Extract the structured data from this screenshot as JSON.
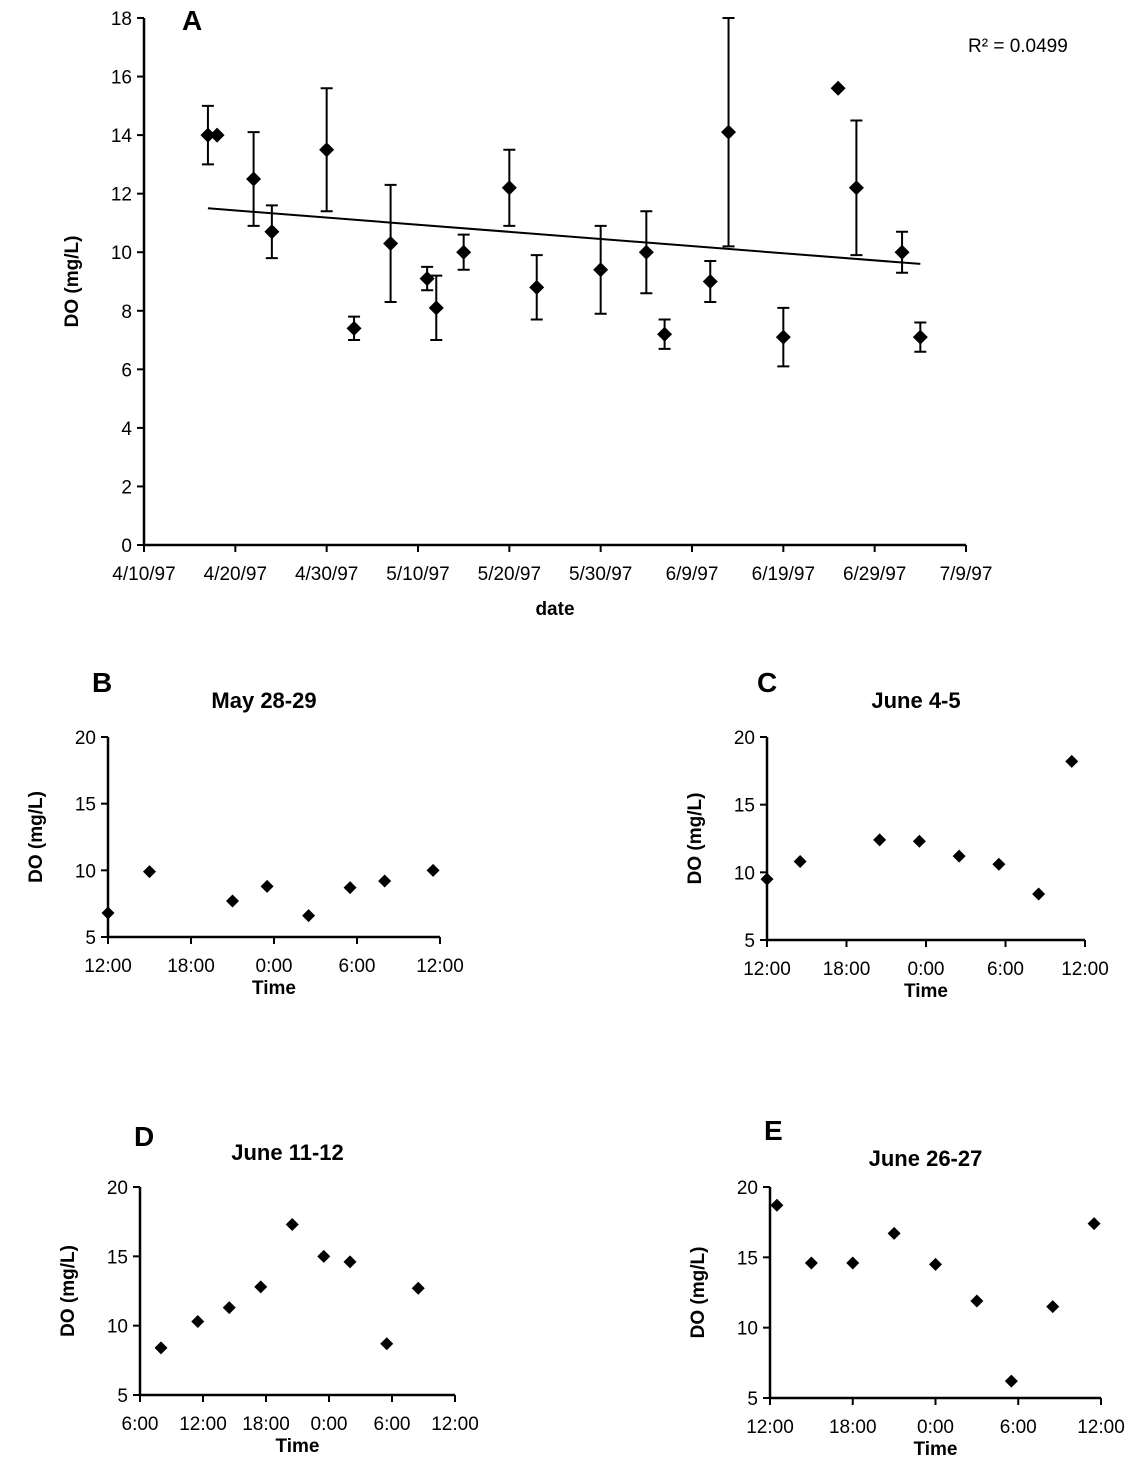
{
  "chart_data": [
    {
      "id": "A",
      "type": "scatter",
      "panel_label": "A",
      "title": "",
      "xlabel": "date",
      "ylabel": "DO (mg/L)",
      "ylim": [
        0,
        18
      ],
      "yticks": [
        "0",
        "2",
        "4",
        "6",
        "8",
        "10",
        "12",
        "14",
        "16",
        "18"
      ],
      "xlim": [
        "4/10/97",
        "7/9/97"
      ],
      "xticks": [
        "4/10/97",
        "4/20/97",
        "4/30/97",
        "5/10/97",
        "5/20/97",
        "5/30/97",
        "6/9/97",
        "6/19/97",
        "6/29/97",
        "7/9/97"
      ],
      "annotation": "R² = 0.0499",
      "trendline": {
        "x": [
          "4/17/97",
          "7/4/97"
        ],
        "y": [
          11.5,
          9.6
        ]
      },
      "points": [
        {
          "x": "4/17/97",
          "y": 14.0,
          "err": 1.0
        },
        {
          "x": "4/18/97",
          "y": 14.0,
          "err": 0.05
        },
        {
          "x": "4/22/97",
          "y": 12.5,
          "err": 1.6
        },
        {
          "x": "4/24/97",
          "y": 10.7,
          "err": 0.9
        },
        {
          "x": "4/30/97",
          "y": 13.5,
          "err": 2.1
        },
        {
          "x": "5/3/97",
          "y": 7.4,
          "err": 0.4
        },
        {
          "x": "5/7/97",
          "y": 10.3,
          "err": 2.0
        },
        {
          "x": "5/11/97",
          "y": 9.1,
          "err": 0.4
        },
        {
          "x": "5/12/97",
          "y": 8.1,
          "err": 1.1
        },
        {
          "x": "5/15/97",
          "y": 10.0,
          "err": 0.6
        },
        {
          "x": "5/20/97",
          "y": 12.2,
          "err": 1.3
        },
        {
          "x": "5/23/97",
          "y": 8.8,
          "err": 1.1
        },
        {
          "x": "5/30/97",
          "y": 9.4,
          "err": 1.5
        },
        {
          "x": "6/4/97",
          "y": 10.0,
          "err": 1.4
        },
        {
          "x": "6/6/97",
          "y": 7.2,
          "err": 0.5
        },
        {
          "x": "6/11/97",
          "y": 9.0,
          "err": 0.7
        },
        {
          "x": "6/13/97",
          "y": 14.1,
          "err": 3.9
        },
        {
          "x": "6/19/97",
          "y": 7.1,
          "err": 1.0
        },
        {
          "x": "6/25/97",
          "y": 15.6,
          "err": 0.0
        },
        {
          "x": "6/27/97",
          "y": 12.2,
          "err": 2.3
        },
        {
          "x": "7/2/97",
          "y": 10.0,
          "err": 0.7
        },
        {
          "x": "7/4/97",
          "y": 7.1,
          "err": 0.5
        }
      ]
    },
    {
      "id": "B",
      "type": "scatter",
      "panel_label": "B",
      "title": "May 28-29",
      "xlabel": "Time",
      "ylabel": "DO (mg/L)",
      "ylim": [
        5,
        20
      ],
      "yticks": [
        "5",
        "10",
        "15",
        "20"
      ],
      "xlim": [
        12,
        36
      ],
      "xticks": [
        "12:00",
        "18:00",
        "0:00",
        "6:00",
        "12:00"
      ],
      "points": [
        {
          "x": 12.0,
          "y": 6.8
        },
        {
          "x": 15.0,
          "y": 9.9
        },
        {
          "x": 21.0,
          "y": 7.7
        },
        {
          "x": 23.5,
          "y": 8.8
        },
        {
          "x": 26.5,
          "y": 6.6
        },
        {
          "x": 29.5,
          "y": 8.7
        },
        {
          "x": 32.0,
          "y": 9.2
        },
        {
          "x": 35.5,
          "y": 10.0
        }
      ]
    },
    {
      "id": "C",
      "type": "scatter",
      "panel_label": "C",
      "title": "June 4-5",
      "xlabel": "Time",
      "ylabel": "DO (mg/L)",
      "ylim": [
        5,
        20
      ],
      "yticks": [
        "5",
        "10",
        "15",
        "20"
      ],
      "xlim": [
        12,
        36
      ],
      "xticks": [
        "12:00",
        "18:00",
        "0:00",
        "6:00",
        "12:00"
      ],
      "points": [
        {
          "x": 12.0,
          "y": 9.5
        },
        {
          "x": 14.5,
          "y": 10.8
        },
        {
          "x": 20.5,
          "y": 12.4
        },
        {
          "x": 23.5,
          "y": 12.3
        },
        {
          "x": 26.5,
          "y": 11.2
        },
        {
          "x": 29.5,
          "y": 10.6
        },
        {
          "x": 32.5,
          "y": 8.4
        },
        {
          "x": 35.0,
          "y": 18.2
        }
      ]
    },
    {
      "id": "D",
      "type": "scatter",
      "panel_label": "D",
      "title": "June 11-12",
      "xlabel": "Time",
      "ylabel": "DO (mg/L)",
      "ylim": [
        5,
        20
      ],
      "yticks": [
        "5",
        "10",
        "15",
        "20"
      ],
      "xlim": [
        6,
        36
      ],
      "xticks": [
        "6:00",
        "12:00",
        "18:00",
        "0:00",
        "6:00",
        "12:00"
      ],
      "points": [
        {
          "x": 8.0,
          "y": 8.4
        },
        {
          "x": 11.5,
          "y": 10.3
        },
        {
          "x": 14.5,
          "y": 11.3
        },
        {
          "x": 17.5,
          "y": 12.8
        },
        {
          "x": 20.5,
          "y": 17.3
        },
        {
          "x": 23.5,
          "y": 15.0
        },
        {
          "x": 26.0,
          "y": 14.6
        },
        {
          "x": 29.5,
          "y": 8.7
        },
        {
          "x": 32.5,
          "y": 12.7
        }
      ]
    },
    {
      "id": "E",
      "type": "scatter",
      "panel_label": "E",
      "title": "June 26-27",
      "xlabel": "Time",
      "ylabel": "DO (mg/L)",
      "ylim": [
        5,
        20
      ],
      "yticks": [
        "5",
        "10",
        "15",
        "20"
      ],
      "xlim": [
        12,
        36
      ],
      "xticks": [
        "12:00",
        "18:00",
        "0:00",
        "6:00",
        "12:00"
      ],
      "points": [
        {
          "x": 12.5,
          "y": 18.7
        },
        {
          "x": 15.0,
          "y": 14.6
        },
        {
          "x": 18.0,
          "y": 14.6
        },
        {
          "x": 21.0,
          "y": 16.7
        },
        {
          "x": 24.0,
          "y": 14.5
        },
        {
          "x": 27.0,
          "y": 11.9
        },
        {
          "x": 29.5,
          "y": 6.2
        },
        {
          "x": 32.5,
          "y": 11.5
        },
        {
          "x": 35.5,
          "y": 17.4
        }
      ]
    }
  ]
}
